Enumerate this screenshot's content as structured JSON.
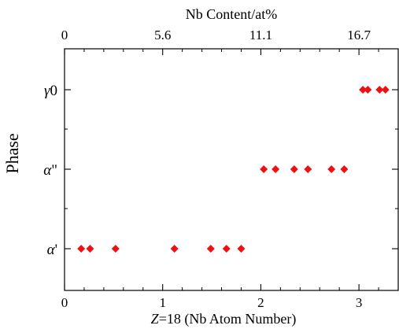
{
  "chart_data": {
    "type": "scatter",
    "xlabel_prefix": "Z",
    "xlabel_rest": "=18 (Nb Atom Number)",
    "x2label": "Nb Content/at%",
    "ylabel": "Phase",
    "xlim": [
      0,
      3.4
    ],
    "xticks": [
      "0",
      "1",
      "2",
      "3"
    ],
    "x2ticks": [
      "0",
      "5.6",
      "11.1",
      "16.7"
    ],
    "categories": [
      {
        "base": "α",
        "suffix": "'"
      },
      {
        "base": "α",
        "suffix": "\""
      },
      {
        "base": "γ",
        "suffix": "0"
      }
    ],
    "marker_color": "#ee1111",
    "points": [
      {
        "x": 0.17,
        "phase": 0
      },
      {
        "x": 0.26,
        "phase": 0
      },
      {
        "x": 0.52,
        "phase": 0
      },
      {
        "x": 1.12,
        "phase": 0
      },
      {
        "x": 1.49,
        "phase": 0
      },
      {
        "x": 1.65,
        "phase": 0
      },
      {
        "x": 1.8,
        "phase": 0
      },
      {
        "x": 2.03,
        "phase": 1
      },
      {
        "x": 2.15,
        "phase": 1
      },
      {
        "x": 2.34,
        "phase": 1
      },
      {
        "x": 2.48,
        "phase": 1
      },
      {
        "x": 2.72,
        "phase": 1
      },
      {
        "x": 2.85,
        "phase": 1
      },
      {
        "x": 3.04,
        "phase": 2
      },
      {
        "x": 3.09,
        "phase": 2
      },
      {
        "x": 3.21,
        "phase": 2
      },
      {
        "x": 3.27,
        "phase": 2
      }
    ]
  }
}
